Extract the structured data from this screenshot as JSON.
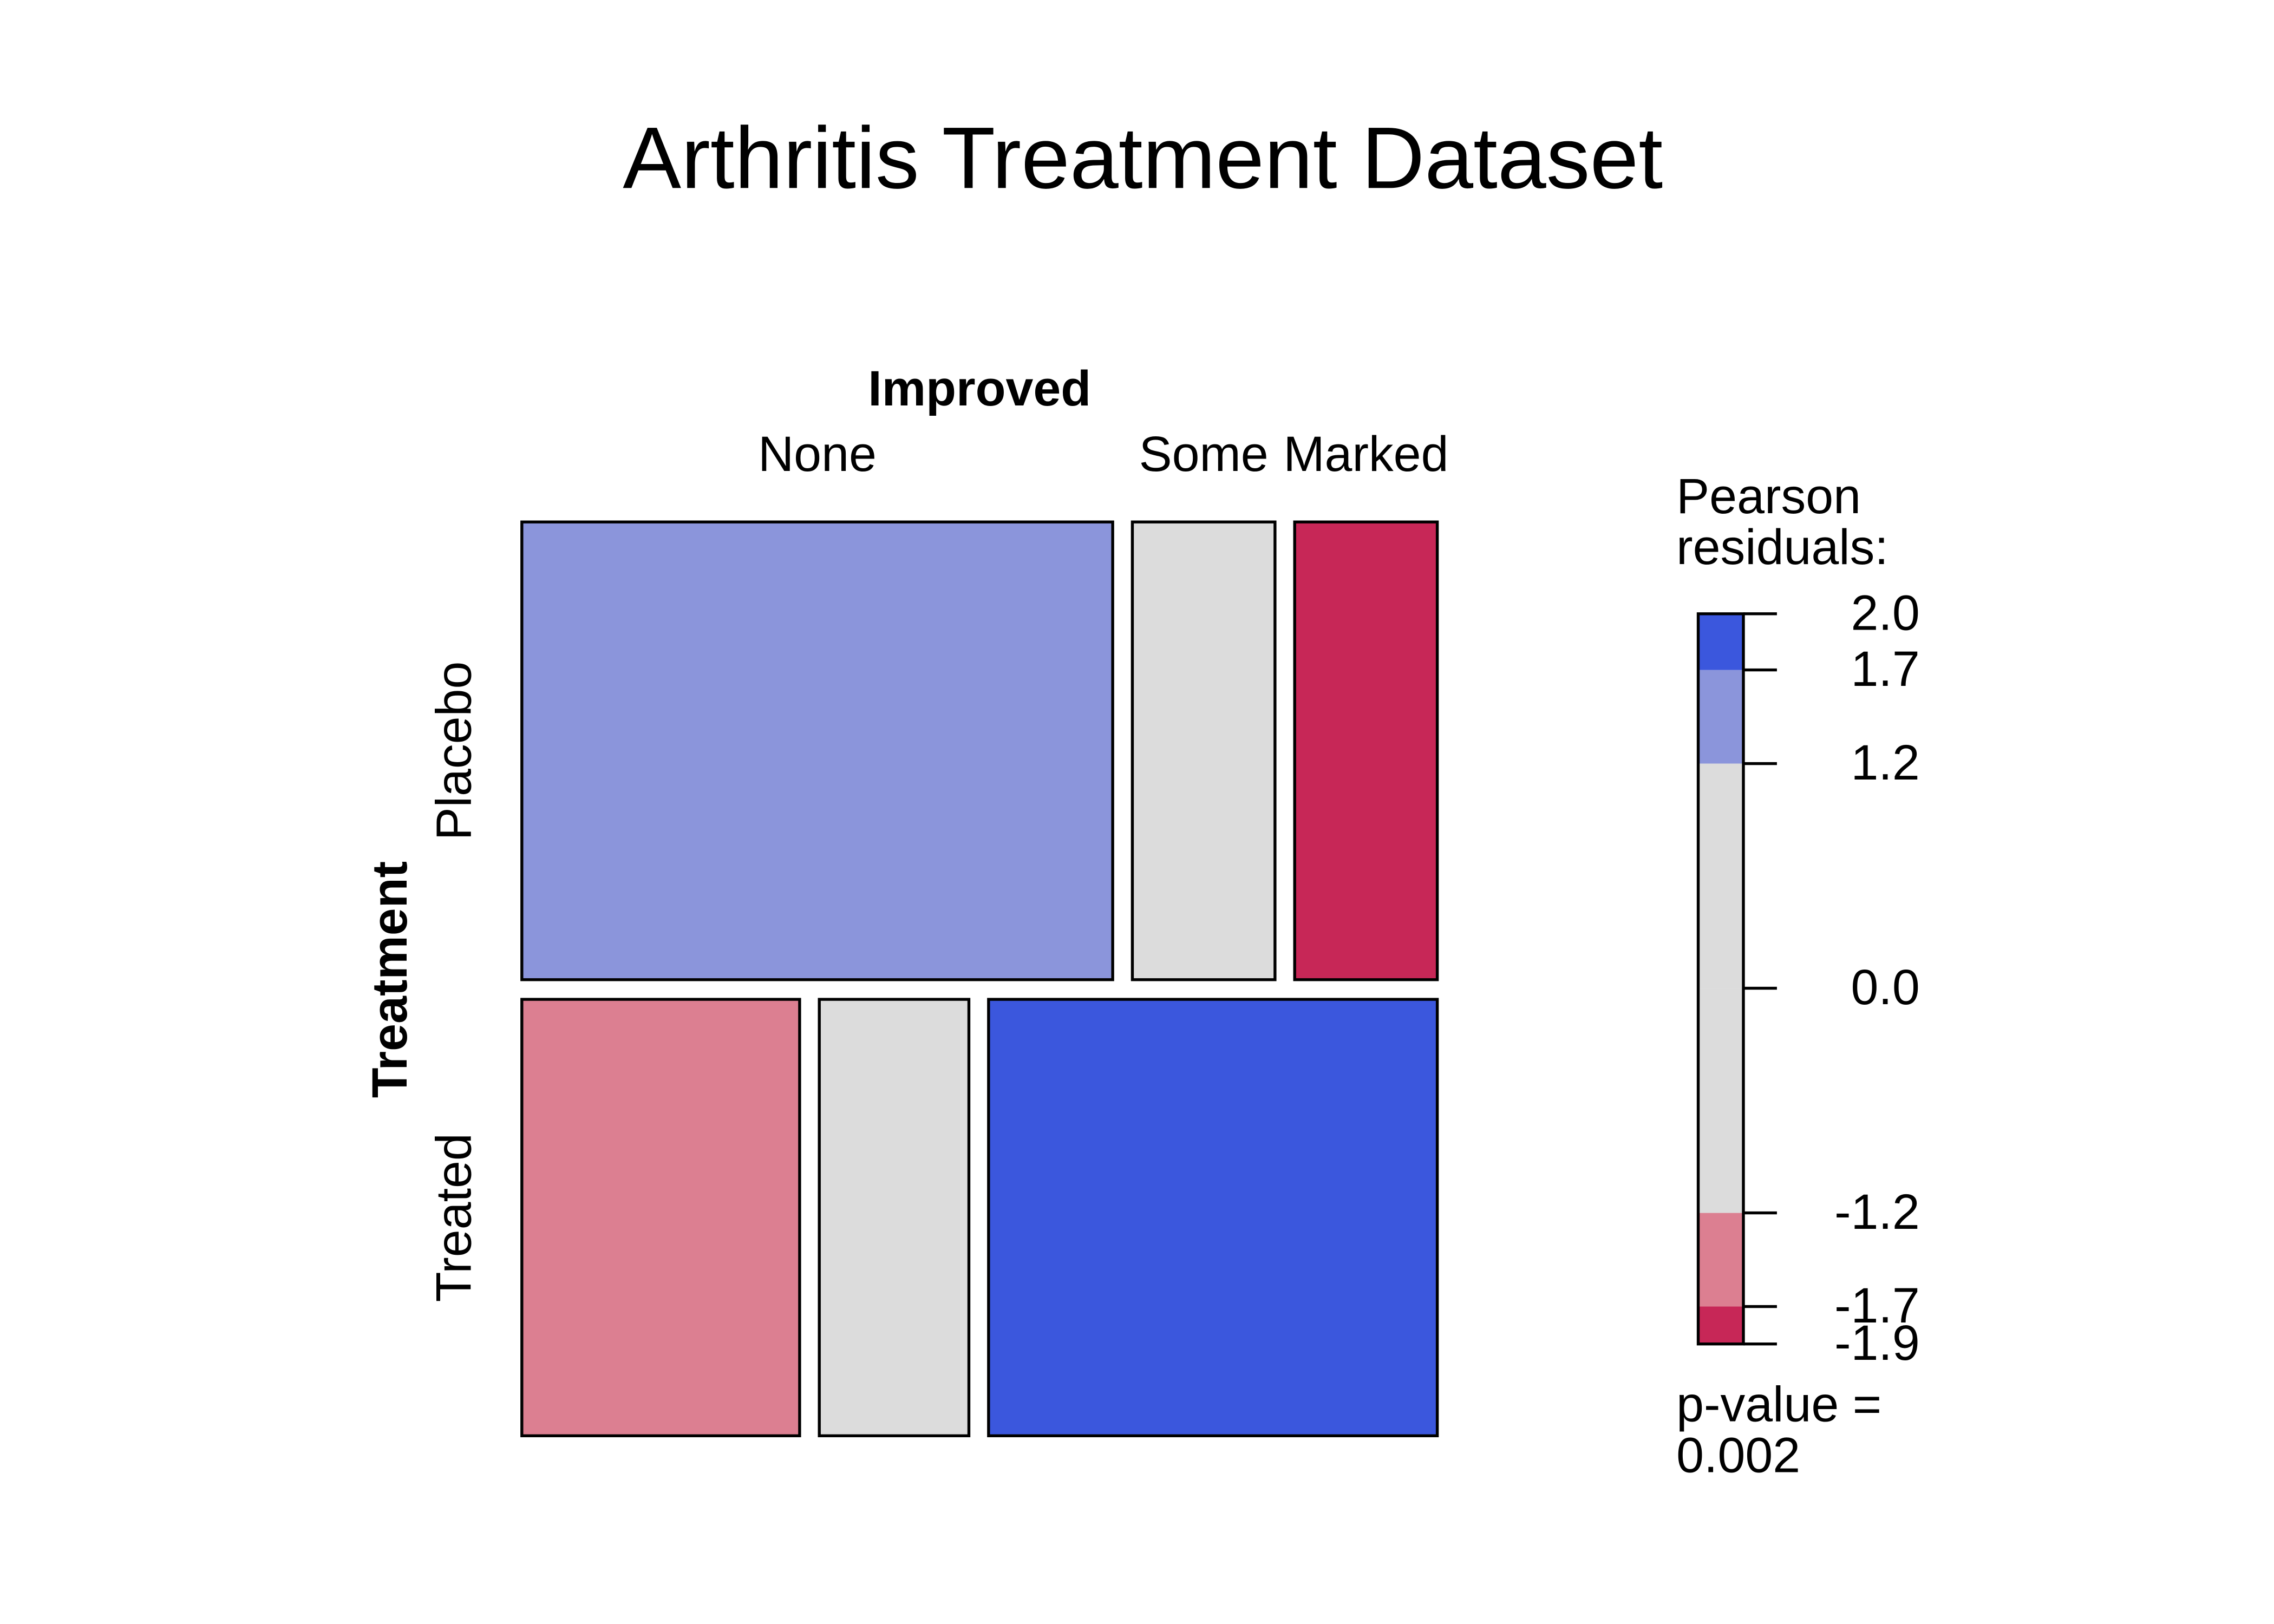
{
  "chart_data": {
    "type": "mosaic",
    "title": "Arthritis Treatment Dataset",
    "x_label": "Improved",
    "y_label": "Treatment",
    "columns": [
      "None",
      "Some",
      "Marked"
    ],
    "rows": [
      "Placebo",
      "Treated"
    ],
    "counts": [
      [
        29,
        7,
        7
      ],
      [
        13,
        7,
        21
      ]
    ],
    "residuals": [
      [
        1.62,
        -0.06,
        -1.94
      ],
      [
        -1.66,
        0.06,
        1.98
      ]
    ],
    "legend": {
      "title": [
        "Pearson",
        "residuals:"
      ],
      "ylim": [
        -1.9,
        2.0
      ],
      "ticks": [
        -1.9,
        -1.7,
        -1.2,
        {
          "value": 0,
          "label": "0.0"
        },
        1.2,
        1.7,
        {
          "value": 2,
          "label": "2.0"
        }
      ],
      "band_colors": [
        "#c72757",
        "#dc7f91",
        "#dcdcdc",
        "#dcdcdc",
        "#8b95db",
        "#3b57dd"
      ]
    },
    "p_value_label": "p-value =",
    "p_value": 0.002
  }
}
